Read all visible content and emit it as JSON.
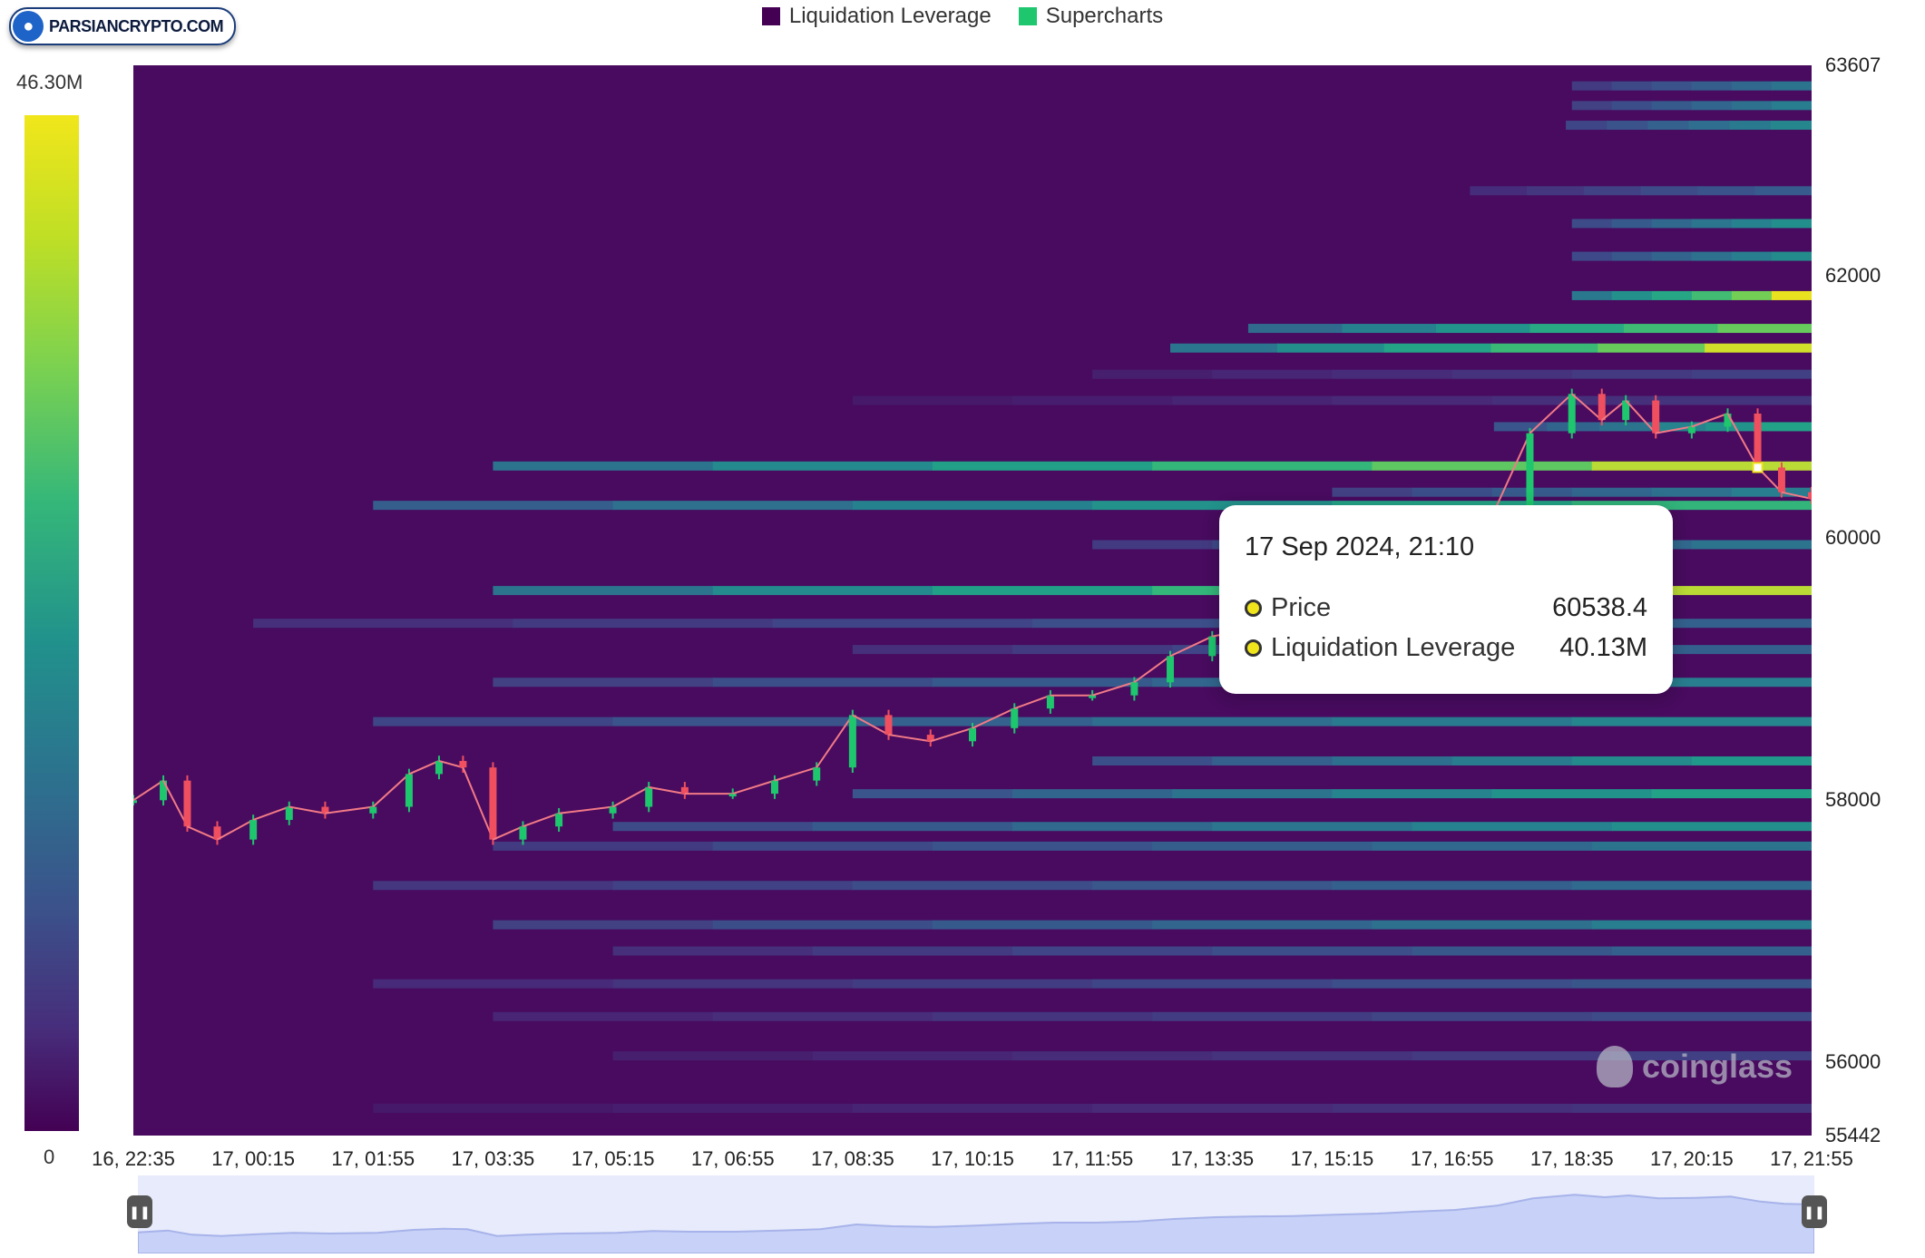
{
  "logo": {
    "text": "PARSIANCRYPTO.COM",
    "icon": "person-icon"
  },
  "legend": [
    {
      "label": "Liquidation Leverage",
      "color": "#440154"
    },
    {
      "label": "Supercharts",
      "color": "#1ec66e"
    }
  ],
  "color_scale": {
    "max_label": "46.30M",
    "min_label": "0",
    "colormap": "viridis"
  },
  "watermark": "coinglass",
  "tooltip": {
    "date": "17 Sep 2024, 21:10",
    "rows": [
      {
        "label": "Price",
        "value": "60538.4"
      },
      {
        "label": "Liquidation Leverage",
        "value": "40.13M"
      }
    ]
  },
  "chart_data": {
    "type": "heatmap",
    "overlay": "candlestick",
    "title": "",
    "xlabel": "",
    "ylabel": "",
    "x_ticks": [
      "16, 22:35",
      "17, 00:15",
      "17, 01:55",
      "17, 03:35",
      "17, 05:15",
      "17, 06:55",
      "17, 08:35",
      "17, 10:15",
      "17, 11:55",
      "17, 13:35",
      "17, 15:15",
      "17, 16:55",
      "17, 18:35",
      "17, 20:15",
      "17, 21:55"
    ],
    "y_ticks": [
      63607,
      62000,
      60000,
      58000,
      56000,
      55442
    ],
    "ylim": [
      55442,
      63607
    ],
    "color_range": [
      0,
      46.3
    ],
    "color_unit": "M",
    "price_series": [
      {
        "t": "16, 22:35",
        "p": 58000
      },
      {
        "t": "16, 23:00",
        "p": 58150
      },
      {
        "t": "16, 23:20",
        "p": 57800
      },
      {
        "t": "16, 23:45",
        "p": 57700
      },
      {
        "t": "17, 00:15",
        "p": 57850
      },
      {
        "t": "17, 00:45",
        "p": 57950
      },
      {
        "t": "17, 01:15",
        "p": 57900
      },
      {
        "t": "17, 01:55",
        "p": 57950
      },
      {
        "t": "17, 02:25",
        "p": 58200
      },
      {
        "t": "17, 02:50",
        "p": 58300
      },
      {
        "t": "17, 03:10",
        "p": 58250
      },
      {
        "t": "17, 03:35",
        "p": 57700
      },
      {
        "t": "17, 04:00",
        "p": 57800
      },
      {
        "t": "17, 04:30",
        "p": 57900
      },
      {
        "t": "17, 05:15",
        "p": 57950
      },
      {
        "t": "17, 05:45",
        "p": 58100
      },
      {
        "t": "17, 06:15",
        "p": 58050
      },
      {
        "t": "17, 06:55",
        "p": 58050
      },
      {
        "t": "17, 07:30",
        "p": 58150
      },
      {
        "t": "17, 08:05",
        "p": 58250
      },
      {
        "t": "17, 08:35",
        "p": 58650
      },
      {
        "t": "17, 09:05",
        "p": 58500
      },
      {
        "t": "17, 09:40",
        "p": 58450
      },
      {
        "t": "17, 10:15",
        "p": 58550
      },
      {
        "t": "17, 10:50",
        "p": 58700
      },
      {
        "t": "17, 11:20",
        "p": 58800
      },
      {
        "t": "17, 11:55",
        "p": 58800
      },
      {
        "t": "17, 12:30",
        "p": 58900
      },
      {
        "t": "17, 13:00",
        "p": 59100
      },
      {
        "t": "17, 13:35",
        "p": 59250
      },
      {
        "t": "17, 14:05",
        "p": 59300
      },
      {
        "t": "17, 14:40",
        "p": 59350
      },
      {
        "t": "17, 15:15",
        "p": 59450
      },
      {
        "t": "17, 15:50",
        "p": 59550
      },
      {
        "t": "17, 16:20",
        "p": 59700
      },
      {
        "t": "17, 16:55",
        "p": 59850
      },
      {
        "t": "17, 17:30",
        "p": 60200
      },
      {
        "t": "17, 18:00",
        "p": 60800
      },
      {
        "t": "17, 18:35",
        "p": 61100
      },
      {
        "t": "17, 19:00",
        "p": 60900
      },
      {
        "t": "17, 19:20",
        "p": 61050
      },
      {
        "t": "17, 19:45",
        "p": 60800
      },
      {
        "t": "17, 20:15",
        "p": 60850
      },
      {
        "t": "17, 20:45",
        "p": 60950
      },
      {
        "t": "17, 21:10",
        "p": 60538.4
      },
      {
        "t": "17, 21:30",
        "p": 60350
      },
      {
        "t": "17, 21:55",
        "p": 60300
      }
    ],
    "liquidation_bands": [
      {
        "price": 63450,
        "start": "17, 18:35",
        "level": 20
      },
      {
        "price": 63300,
        "start": "17, 18:35",
        "level": 22
      },
      {
        "price": 63150,
        "start": "17, 18:30",
        "level": 24
      },
      {
        "price": 62650,
        "start": "17, 17:10",
        "level": 15
      },
      {
        "price": 62400,
        "start": "17, 18:35",
        "level": 26
      },
      {
        "price": 62150,
        "start": "17, 18:35",
        "level": 25
      },
      {
        "price": 61850,
        "start": "17, 18:35",
        "level": 46
      },
      {
        "price": 61600,
        "start": "17, 14:05",
        "level": 40
      },
      {
        "price": 61450,
        "start": "17, 13:00",
        "level": 45
      },
      {
        "price": 61250,
        "start": "17, 11:55",
        "level": 10
      },
      {
        "price": 61050,
        "start": "17, 08:35",
        "level": 8
      },
      {
        "price": 60850,
        "start": "17, 17:30",
        "level": 30
      },
      {
        "price": 60550,
        "start": "17, 03:35",
        "level": 44
      },
      {
        "price": 60350,
        "start": "17, 15:15",
        "level": 22
      },
      {
        "price": 60250,
        "start": "17, 01:55",
        "level": 34
      },
      {
        "price": 59950,
        "start": "17, 11:55",
        "level": 20
      },
      {
        "price": 59600,
        "start": "17, 03:35",
        "level": 44
      },
      {
        "price": 59350,
        "start": "17, 00:15",
        "level": 16
      },
      {
        "price": 59150,
        "start": "17, 08:35",
        "level": 16
      },
      {
        "price": 58900,
        "start": "17, 03:35",
        "level": 22
      },
      {
        "price": 58600,
        "start": "17, 01:55",
        "level": 24
      },
      {
        "price": 58300,
        "start": "17, 11:55",
        "level": 28
      },
      {
        "price": 58050,
        "start": "17, 08:35",
        "level": 30
      },
      {
        "price": 57800,
        "start": "17, 05:15",
        "level": 26
      },
      {
        "price": 57650,
        "start": "17, 03:35",
        "level": 20
      },
      {
        "price": 57350,
        "start": "17, 01:55",
        "level": 18
      },
      {
        "price": 57050,
        "start": "17, 03:35",
        "level": 22
      },
      {
        "price": 56850,
        "start": "17, 05:15",
        "level": 16
      },
      {
        "price": 56600,
        "start": "17, 01:55",
        "level": 14
      },
      {
        "price": 56350,
        "start": "17, 03:35",
        "level": 12
      },
      {
        "price": 56050,
        "start": "17, 05:15",
        "level": 10
      },
      {
        "price": 55650,
        "start": "17, 01:55",
        "level": 8
      }
    ]
  }
}
